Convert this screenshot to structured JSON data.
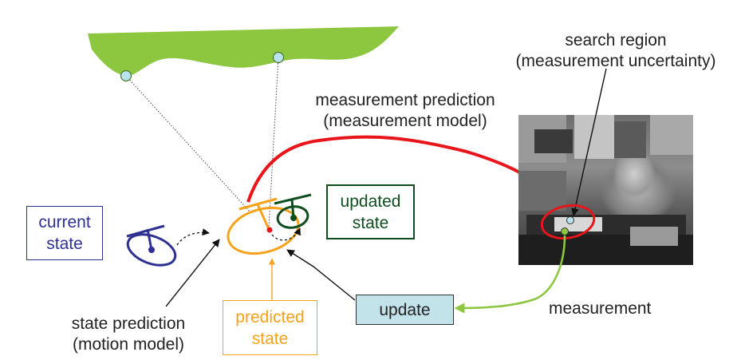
{
  "labels": {
    "search_region_line1": "search region",
    "search_region_line2": "(measurement uncertainty)",
    "measurement_prediction_line1": "measurement prediction",
    "measurement_prediction_line2": "(measurement model)",
    "current_state_line1": "current",
    "current_state_line2": "state",
    "updated_state_line1": "updated",
    "updated_state_line2": "state",
    "state_prediction_line1": "state prediction",
    "state_prediction_line2": "(motion model)",
    "predicted_state_line1": "predicted",
    "predicted_state_line2": "state",
    "update": "update",
    "measurement": "measurement"
  },
  "colors": {
    "current_state": "#2e3192",
    "predicted_state": "#f7a21b",
    "updated_state": "#0f4d1f",
    "measurement_prediction_arrow": "#e8151b",
    "measurement_arrow": "#8dc63f",
    "terrain": "#8dc63f",
    "update_box_fill": "#c3e3ea",
    "landmark_dot": "#b9e3ee"
  }
}
